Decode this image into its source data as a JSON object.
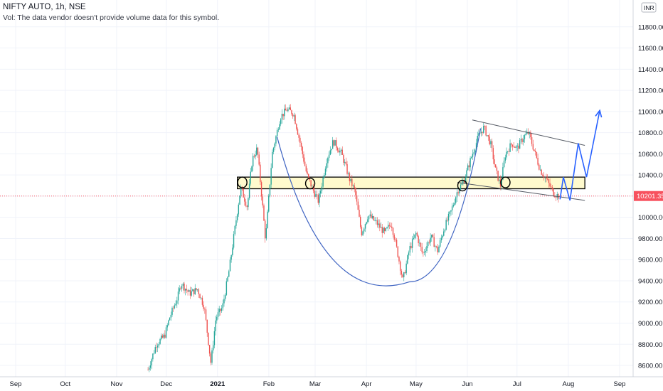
{
  "header": {
    "symbol": "NIFTY AUTO",
    "interval": "1h",
    "exchange": "NSE",
    "volume_note": "Vol: The data vendor doesn't provide volume data for this symbol."
  },
  "colors": {
    "up": "#26a69a",
    "down": "#ef5350",
    "grid": "#f0f3fa",
    "axis_text": "#131722",
    "price_line": "#f7525f",
    "zone_fill": "#fff9c4",
    "zone_stroke": "#000000",
    "cup_line": "#3f64c2",
    "projection": "#2962ff",
    "channel": "#555a64"
  },
  "chart_data": {
    "type": "candlestick",
    "currency_label": "INR",
    "last_price_label": "10201.35",
    "last_price": 10201.35,
    "ylim": [
      8560,
      11980
    ],
    "y_ticks": [
      8600,
      8800,
      9000,
      9200,
      9400,
      9600,
      9800,
      10000,
      10200,
      10400,
      10600,
      10800,
      11000,
      11200,
      11400,
      11600,
      11800
    ],
    "x_ticks": [
      {
        "label": "Sep",
        "date": "2020-09-01",
        "bold": false
      },
      {
        "label": "Oct",
        "date": "2020-10-01",
        "bold": false
      },
      {
        "label": "Nov",
        "date": "2020-11-01",
        "bold": false
      },
      {
        "label": "Dec",
        "date": "2020-12-01",
        "bold": false
      },
      {
        "label": "2021",
        "date": "2021-01-01",
        "bold": true
      },
      {
        "label": "Feb",
        "date": "2021-02-01",
        "bold": false
      },
      {
        "label": "Mar",
        "date": "2021-03-01",
        "bold": false
      },
      {
        "label": "Apr",
        "date": "2021-04-01",
        "bold": false
      },
      {
        "label": "May",
        "date": "2021-05-01",
        "bold": false
      },
      {
        "label": "Jun",
        "date": "2021-06-01",
        "bold": false
      },
      {
        "label": "Jul",
        "date": "2021-07-01",
        "bold": false
      },
      {
        "label": "Aug",
        "date": "2021-08-01",
        "bold": false
      },
      {
        "label": "Sep",
        "date": "2021-09-01",
        "bold": false
      }
    ],
    "price_path": [
      [
        "2020-11-20",
        8560
      ],
      [
        "2020-11-25",
        8800
      ],
      [
        "2020-11-30",
        8880
      ],
      [
        "2020-12-03",
        9050
      ],
      [
        "2020-12-08",
        9250
      ],
      [
        "2020-12-10",
        9380
      ],
      [
        "2020-12-15",
        9280
      ],
      [
        "2020-12-20",
        9320
      ],
      [
        "2020-12-24",
        9150
      ],
      [
        "2020-12-28",
        8620
      ],
      [
        "2020-12-31",
        9050
      ],
      [
        "2021-01-04",
        9150
      ],
      [
        "2021-01-08",
        9500
      ],
      [
        "2021-01-12",
        9950
      ],
      [
        "2021-01-15",
        10280
      ],
      [
        "2021-01-19",
        10100
      ],
      [
        "2021-01-22",
        10550
      ],
      [
        "2021-01-25",
        10650
      ],
      [
        "2021-01-28",
        10150
      ],
      [
        "2021-01-30",
        9780
      ],
      [
        "2021-02-03",
        10600
      ],
      [
        "2021-02-08",
        10950
      ],
      [
        "2021-02-12",
        11020
      ],
      [
        "2021-02-16",
        10980
      ],
      [
        "2021-02-20",
        10700
      ],
      [
        "2021-02-24",
        10400
      ],
      [
        "2021-02-28",
        10250
      ],
      [
        "2021-03-03",
        10150
      ],
      [
        "2021-03-08",
        10550
      ],
      [
        "2021-03-12",
        10720
      ],
      [
        "2021-03-17",
        10600
      ],
      [
        "2021-03-22",
        10350
      ],
      [
        "2021-03-25",
        10250
      ],
      [
        "2021-03-29",
        9850
      ],
      [
        "2021-04-02",
        10020
      ],
      [
        "2021-04-07",
        9950
      ],
      [
        "2021-04-12",
        9850
      ],
      [
        "2021-04-16",
        9950
      ],
      [
        "2021-04-20",
        9650
      ],
      [
        "2021-04-23",
        9400
      ],
      [
        "2021-04-27",
        9700
      ],
      [
        "2021-05-01",
        9850
      ],
      [
        "2021-05-05",
        9650
      ],
      [
        "2021-05-10",
        9820
      ],
      [
        "2021-05-14",
        9680
      ],
      [
        "2021-05-18",
        9900
      ],
      [
        "2021-05-22",
        10050
      ],
      [
        "2021-05-26",
        10250
      ],
      [
        "2021-05-30",
        10350
      ],
      [
        "2021-06-03",
        10550
      ],
      [
        "2021-06-08",
        10780
      ],
      [
        "2021-06-11",
        10850
      ],
      [
        "2021-06-15",
        10700
      ],
      [
        "2021-06-18",
        10450
      ],
      [
        "2021-06-21",
        10300
      ],
      [
        "2021-06-24",
        10600
      ],
      [
        "2021-06-28",
        10700
      ],
      [
        "2021-07-01",
        10650
      ],
      [
        "2021-07-05",
        10760
      ],
      [
        "2021-07-08",
        10800
      ],
      [
        "2021-07-12",
        10600
      ],
      [
        "2021-07-15",
        10450
      ],
      [
        "2021-07-19",
        10350
      ],
      [
        "2021-07-23",
        10230
      ],
      [
        "2021-07-26",
        10201
      ]
    ],
    "annotations": {
      "support_zone": {
        "x1": "2021-01-13",
        "x2": "2021-08-11",
        "y_low": 10270,
        "y_high": 10380
      },
      "cup_curve": {
        "start": [
          "2021-02-06",
          10760
        ],
        "bottom": [
          "2021-04-27",
          9390
        ],
        "end": [
          "2021-06-09",
          10840
        ]
      },
      "channel_upper": [
        [
          "2021-06-04",
          10920
        ],
        [
          "2021-08-11",
          10680
        ]
      ],
      "channel_lower": [
        [
          "2021-05-26",
          10330
        ],
        [
          "2021-08-11",
          10160
        ]
      ],
      "touch_markers": [
        [
          "2021-01-16",
          10330
        ],
        [
          "2021-02-26",
          10320
        ],
        [
          "2021-05-29",
          10300
        ],
        [
          "2021-06-24",
          10330
        ]
      ],
      "projection_path": [
        [
          "2021-07-27",
          10170
        ],
        [
          "2021-07-29",
          10380
        ],
        [
          "2021-08-02",
          10160
        ],
        [
          "2021-08-07",
          10700
        ],
        [
          "2021-08-12",
          10380
        ],
        [
          "2021-08-20",
          11010
        ]
      ]
    }
  }
}
